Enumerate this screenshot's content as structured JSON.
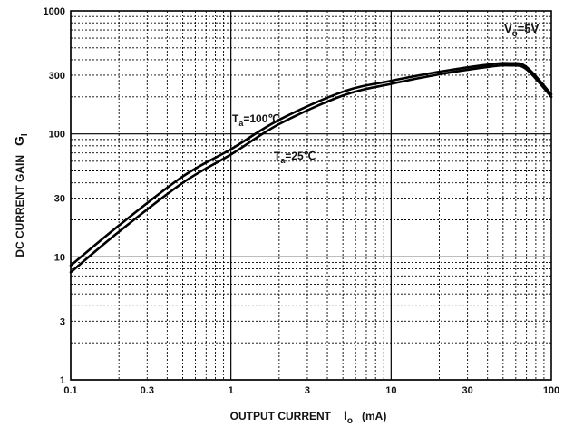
{
  "chart_data": {
    "type": "line",
    "x_scale": "log",
    "y_scale": "log",
    "xlim": [
      0.1,
      100
    ],
    "ylim": [
      1,
      1000
    ],
    "grid": true,
    "xlabel": {
      "main": "OUTPUT CURRENT",
      "symbol": "I",
      "subscript": "o",
      "unit": "(mA)"
    },
    "ylabel": {
      "main": "DC CURRENT GAIN",
      "symbol": "G",
      "subscript": "I"
    },
    "x_ticks": [
      {
        "value": 0.1,
        "label": "0.1"
      },
      {
        "value": 0.3,
        "label": "0.3"
      },
      {
        "value": 1,
        "label": "1"
      },
      {
        "value": 3,
        "label": "3"
      },
      {
        "value": 10,
        "label": "10"
      },
      {
        "value": 30,
        "label": "30"
      },
      {
        "value": 100,
        "label": "100"
      }
    ],
    "y_ticks": [
      {
        "value": 1,
        "label": "1"
      },
      {
        "value": 3,
        "label": "3"
      },
      {
        "value": 10,
        "label": "10"
      },
      {
        "value": 30,
        "label": "30"
      },
      {
        "value": 100,
        "label": "100"
      },
      {
        "value": 300,
        "label": "300"
      },
      {
        "value": 1000,
        "label": "1000"
      }
    ],
    "condition": {
      "symbol": "V",
      "subscript": "o",
      "value": "=5V"
    },
    "series": [
      {
        "name": "Ta=100℃",
        "label": {
          "symbol": "T",
          "subscript": "a",
          "value": "=100℃"
        },
        "x": [
          0.1,
          0.2,
          0.5,
          1,
          2,
          5,
          10,
          20,
          40,
          55,
          70,
          100
        ],
        "y": [
          8.5,
          18,
          45,
          75,
          130,
          220,
          270,
          320,
          365,
          375,
          350,
          210
        ]
      },
      {
        "name": "Ta=25℃",
        "label": {
          "symbol": "T",
          "subscript": "a",
          "value": "=25℃"
        },
        "x": [
          0.1,
          0.2,
          0.5,
          1,
          2,
          5,
          10,
          20,
          40,
          55,
          70,
          100
        ],
        "y": [
          7.5,
          16,
          40,
          68,
          120,
          205,
          255,
          305,
          350,
          360,
          335,
          200
        ]
      }
    ]
  }
}
